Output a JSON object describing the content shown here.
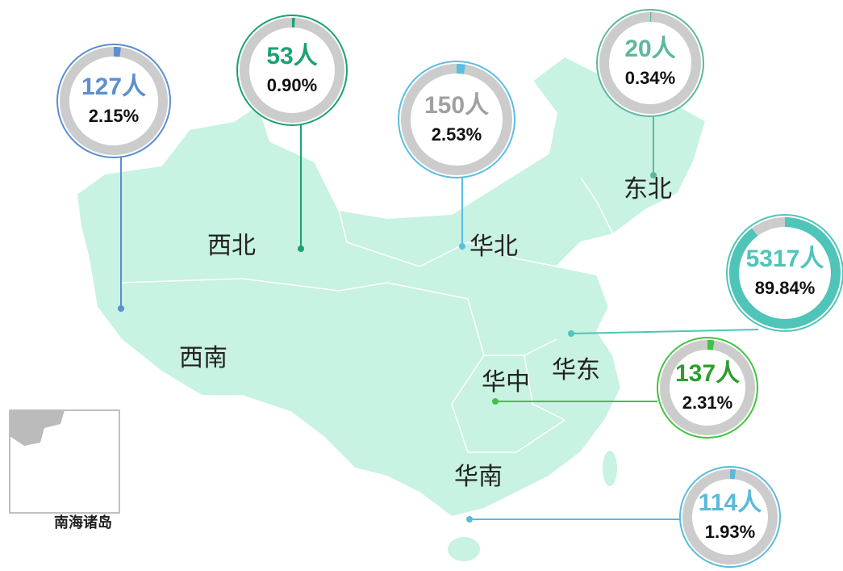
{
  "inset_label": "南海诸岛",
  "regions": [
    {
      "name": "西南",
      "count": "127人",
      "percent": 2.15,
      "percent_label": "2.15%",
      "color": "#5b8fd0",
      "count_color": "#5b8fd0"
    },
    {
      "name": "西北",
      "count": "53人",
      "percent": 0.9,
      "percent_label": "0.90%",
      "color": "#1aa36e",
      "count_color": "#1aa36e"
    },
    {
      "name": "华北",
      "count": "150人",
      "percent": 2.53,
      "percent_label": "2.53%",
      "color": "#5bbde3",
      "count_color": "#a0a0a0"
    },
    {
      "name": "东北",
      "count": "20人",
      "percent": 0.34,
      "percent_label": "0.34%",
      "color": "#5cb8a0",
      "count_color": "#5cb8a0"
    },
    {
      "name": "华东",
      "count": "5317人",
      "percent": 89.84,
      "percent_label": "89.84%",
      "color": "#4ec5b8",
      "count_color": "#4ec5b8"
    },
    {
      "name": "华中",
      "count": "137人",
      "percent": 2.31,
      "percent_label": "2.31%",
      "color": "#3fc43f",
      "count_color": "#2e9e2e"
    },
    {
      "name": "华南",
      "count": "114人",
      "percent": 1.93,
      "percent_label": "1.93%",
      "color": "#5bbad8",
      "count_color": "#5bbad8"
    }
  ]
}
